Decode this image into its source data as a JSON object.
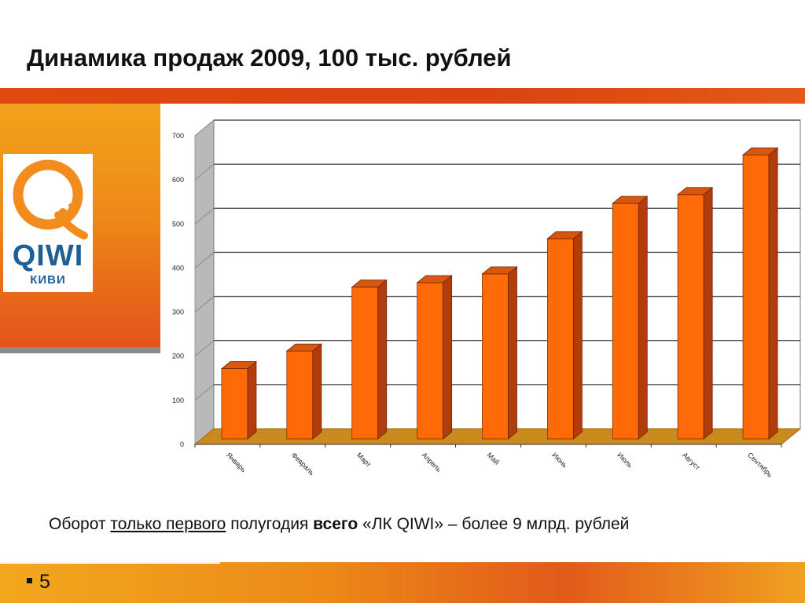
{
  "slide": {
    "title": "Динамика продаж 2009, 100 тыс. рублей",
    "page_number": "5",
    "caption": {
      "p1": "Оборот ",
      "p2": "только первого",
      "p3": " полугодия ",
      "p4": "всего",
      "p5": " «ЛК QIWI» – более 9 млрд. рублей"
    }
  },
  "logo": {
    "brand": "QIWI",
    "subtitle": "КИВИ"
  },
  "colors": {
    "accent_orange": "#e8561a",
    "bar_front": "#ff6a08",
    "bar_side": "#b23d0c",
    "bar_top": "#d9560f",
    "floor": "#c98a1e"
  },
  "chart_data": {
    "type": "bar",
    "categories": [
      "Январь",
      "Февраль",
      "Март",
      "Апрель",
      "Май",
      "Июнь",
      "Июль",
      "Август",
      "Сентябрь"
    ],
    "values": [
      170,
      210,
      355,
      365,
      385,
      465,
      545,
      565,
      655
    ],
    "ylim": [
      0,
      700
    ],
    "yticks": [
      "0",
      "100",
      "200",
      "300",
      "400",
      "500",
      "600",
      "700"
    ],
    "grid": true,
    "legend": false,
    "style": "3d"
  }
}
